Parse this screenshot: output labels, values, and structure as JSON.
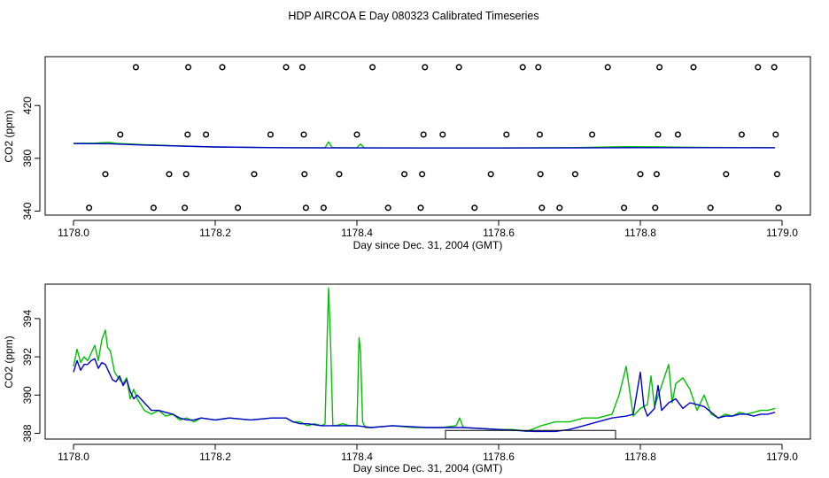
{
  "title": "HDP AIRCOA E  Day 080323  Calibrated Timeseries",
  "colors": {
    "series_green": "#00c000",
    "series_blue": "#0000cc",
    "axes": "#000000",
    "background": "#ffffff"
  },
  "chart_data": [
    {
      "type": "line",
      "xlabel": "Day since Dec. 31, 2004 (GMT)",
      "ylabel": "CO2 (ppm)",
      "xlim": [
        1177.96,
        1179.04
      ],
      "ylim": [
        337,
        457
      ],
      "x_ticks": [
        "1178.0",
        "1178.2",
        "1178.4",
        "1178.6",
        "1178.8",
        "1179.0"
      ],
      "y_ticks": [
        "340",
        "380",
        "420"
      ],
      "grid": false,
      "points_series": [
        {
          "x": 1178.022,
          "y": 342.5
        },
        {
          "x": 1178.045,
          "y": 368
        },
        {
          "x": 1178.066,
          "y": 398
        },
        {
          "x": 1178.088,
          "y": 449
        },
        {
          "x": 1178.113,
          "y": 342.5
        },
        {
          "x": 1178.135,
          "y": 368
        },
        {
          "x": 1178.157,
          "y": 342.5
        },
        {
          "x": 1178.159,
          "y": 368
        },
        {
          "x": 1178.161,
          "y": 398
        },
        {
          "x": 1178.162,
          "y": 449
        },
        {
          "x": 1178.187,
          "y": 398
        },
        {
          "x": 1178.21,
          "y": 449
        },
        {
          "x": 1178.232,
          "y": 342.5
        },
        {
          "x": 1178.255,
          "y": 368
        },
        {
          "x": 1178.278,
          "y": 398
        },
        {
          "x": 1178.3,
          "y": 449
        },
        {
          "x": 1178.323,
          "y": 449
        },
        {
          "x": 1178.325,
          "y": 398
        },
        {
          "x": 1178.326,
          "y": 368
        },
        {
          "x": 1178.328,
          "y": 342.5
        },
        {
          "x": 1178.353,
          "y": 342.5
        },
        {
          "x": 1178.375,
          "y": 368
        },
        {
          "x": 1178.4,
          "y": 398
        },
        {
          "x": 1178.422,
          "y": 449
        },
        {
          "x": 1178.444,
          "y": 342.5
        },
        {
          "x": 1178.467,
          "y": 368
        },
        {
          "x": 1178.49,
          "y": 342.5
        },
        {
          "x": 1178.492,
          "y": 368
        },
        {
          "x": 1178.494,
          "y": 398
        },
        {
          "x": 1178.496,
          "y": 449
        },
        {
          "x": 1178.521,
          "y": 398
        },
        {
          "x": 1178.544,
          "y": 449
        },
        {
          "x": 1178.566,
          "y": 342.5
        },
        {
          "x": 1178.589,
          "y": 368
        },
        {
          "x": 1178.611,
          "y": 398
        },
        {
          "x": 1178.634,
          "y": 449
        },
        {
          "x": 1178.656,
          "y": 449
        },
        {
          "x": 1178.658,
          "y": 398
        },
        {
          "x": 1178.659,
          "y": 368
        },
        {
          "x": 1178.661,
          "y": 342.5
        },
        {
          "x": 1178.686,
          "y": 342.5
        },
        {
          "x": 1178.708,
          "y": 368
        },
        {
          "x": 1178.732,
          "y": 398
        },
        {
          "x": 1178.754,
          "y": 449
        },
        {
          "x": 1178.777,
          "y": 342.5
        },
        {
          "x": 1178.8,
          "y": 368
        },
        {
          "x": 1178.821,
          "y": 342.5
        },
        {
          "x": 1178.823,
          "y": 368
        },
        {
          "x": 1178.825,
          "y": 398
        },
        {
          "x": 1178.827,
          "y": 449
        },
        {
          "x": 1178.853,
          "y": 398
        },
        {
          "x": 1178.875,
          "y": 449
        },
        {
          "x": 1178.899,
          "y": 342.5
        },
        {
          "x": 1178.921,
          "y": 368
        },
        {
          "x": 1178.943,
          "y": 398
        },
        {
          "x": 1178.966,
          "y": 449
        },
        {
          "x": 1178.989,
          "y": 449
        },
        {
          "x": 1178.991,
          "y": 398
        },
        {
          "x": 1178.993,
          "y": 368
        },
        {
          "x": 1178.995,
          "y": 342.5
        }
      ],
      "series": [
        {
          "color": "green",
          "x": [
            1178.0,
            1178.03,
            1178.05,
            1178.06,
            1178.1,
            1178.2,
            1178.3,
            1178.355,
            1178.36,
            1178.365,
            1178.4,
            1178.405,
            1178.41,
            1178.5,
            1178.6,
            1178.7,
            1178.78,
            1178.83,
            1178.85,
            1178.9,
            1178.99
          ],
          "values": [
            391.3,
            391.5,
            392.1,
            391.4,
            390.3,
            388.5,
            388.1,
            388.0,
            392.5,
            388.1,
            388.0,
            390.8,
            388.0,
            387.9,
            387.9,
            388.1,
            388.8,
            388.7,
            388.5,
            388.2,
            388.1
          ]
        },
        {
          "color": "blue",
          "x": [
            1178.0,
            1178.05,
            1178.1,
            1178.2,
            1178.3,
            1178.4,
            1178.5,
            1178.6,
            1178.7,
            1178.8,
            1178.9,
            1178.99
          ],
          "values": [
            391.2,
            391.0,
            390.0,
            388.6,
            388.0,
            387.9,
            387.8,
            387.8,
            387.9,
            388.1,
            388.1,
            388.0
          ]
        }
      ]
    },
    {
      "type": "line",
      "xlabel": "Day since Dec. 31, 2004 (GMT)",
      "ylabel": "CO2 (ppm)",
      "xlim": [
        1177.96,
        1179.04
      ],
      "ylim": [
        387.7,
        395.8
      ],
      "x_ticks": [
        "1178.0",
        "1178.2",
        "1178.4",
        "1178.6",
        "1178.8",
        "1179.0"
      ],
      "y_ticks": [
        "388",
        "390",
        "392",
        "394"
      ],
      "grid": false,
      "bracket": {
        "x_start": 1178.525,
        "x_end": 1178.765,
        "y_top": 388.15
      },
      "series": [
        {
          "color": "green",
          "x": [
            1178.0,
            1178.005,
            1178.01,
            1178.015,
            1178.02,
            1178.025,
            1178.03,
            1178.035,
            1178.04,
            1178.045,
            1178.048,
            1178.052,
            1178.058,
            1178.065,
            1178.07,
            1178.075,
            1178.08,
            1178.085,
            1178.09,
            1178.095,
            1178.1,
            1178.11,
            1178.12,
            1178.13,
            1178.14,
            1178.15,
            1178.16,
            1178.17,
            1178.18,
            1178.2,
            1178.22,
            1178.25,
            1178.28,
            1178.3,
            1178.31,
            1178.32,
            1178.33,
            1178.34,
            1178.35,
            1178.355,
            1178.358,
            1178.36,
            1178.363,
            1178.366,
            1178.37,
            1178.38,
            1178.39,
            1178.4,
            1178.403,
            1178.405,
            1178.408,
            1178.412,
            1178.42,
            1178.45,
            1178.48,
            1178.5,
            1178.52,
            1178.54,
            1178.545,
            1178.55,
            1178.6,
            1178.62,
            1178.64,
            1178.66,
            1178.68,
            1178.7,
            1178.72,
            1178.74,
            1178.76,
            1178.77,
            1178.78,
            1178.79,
            1178.8,
            1178.81,
            1178.815,
            1178.82,
            1178.83,
            1178.84,
            1178.845,
            1178.85,
            1178.86,
            1178.87,
            1178.88,
            1178.89,
            1178.9,
            1178.91,
            1178.92,
            1178.93,
            1178.94,
            1178.95,
            1178.96,
            1178.97,
            1178.98,
            1178.99
          ],
          "values": [
            391.5,
            392.4,
            391.7,
            392.0,
            391.8,
            392.2,
            392.6,
            391.8,
            392.9,
            393.4,
            392.5,
            392.3,
            391.2,
            390.8,
            390.6,
            390.9,
            389.8,
            390.3,
            389.8,
            389.5,
            389.2,
            389.0,
            389.2,
            388.9,
            389.0,
            388.7,
            388.8,
            388.6,
            388.8,
            388.7,
            388.8,
            388.7,
            388.8,
            388.8,
            388.6,
            388.6,
            388.4,
            388.5,
            388.4,
            388.5,
            393.0,
            395.6,
            392.5,
            388.4,
            388.4,
            388.5,
            388.4,
            388.4,
            393.0,
            392.3,
            388.6,
            388.3,
            388.3,
            388.4,
            388.3,
            388.3,
            388.3,
            388.4,
            388.8,
            388.3,
            388.2,
            388.2,
            388.1,
            388.4,
            388.6,
            388.6,
            388.8,
            388.8,
            389.0,
            390.0,
            391.5,
            388.9,
            389.3,
            389.5,
            391.0,
            389.4,
            390.5,
            391.6,
            389.6,
            390.6,
            390.9,
            390.3,
            389.2,
            390.0,
            389.0,
            388.8,
            389.0,
            388.9,
            389.1,
            389.0,
            389.1,
            389.2,
            389.2,
            389.3
          ]
        },
        {
          "color": "blue",
          "x": [
            1178.0,
            1178.005,
            1178.01,
            1178.015,
            1178.02,
            1178.025,
            1178.03,
            1178.035,
            1178.04,
            1178.045,
            1178.05,
            1178.055,
            1178.06,
            1178.065,
            1178.07,
            1178.075,
            1178.08,
            1178.085,
            1178.09,
            1178.1,
            1178.11,
            1178.12,
            1178.13,
            1178.14,
            1178.15,
            1178.16,
            1178.17,
            1178.18,
            1178.2,
            1178.22,
            1178.25,
            1178.28,
            1178.3,
            1178.31,
            1178.32,
            1178.33,
            1178.35,
            1178.38,
            1178.4,
            1178.42,
            1178.45,
            1178.5,
            1178.55,
            1178.6,
            1178.65,
            1178.68,
            1178.7,
            1178.72,
            1178.74,
            1178.76,
            1178.78,
            1178.79,
            1178.8,
            1178.805,
            1178.81,
            1178.82,
            1178.825,
            1178.83,
            1178.84,
            1178.85,
            1178.86,
            1178.87,
            1178.88,
            1178.89,
            1178.9,
            1178.91,
            1178.92,
            1178.93,
            1178.94,
            1178.95,
            1178.96,
            1178.97,
            1178.98,
            1178.99
          ],
          "values": [
            391.2,
            391.8,
            391.3,
            391.6,
            391.6,
            391.8,
            391.9,
            391.4,
            391.7,
            391.6,
            391.2,
            390.8,
            390.7,
            391.0,
            390.5,
            390.8,
            390.2,
            389.8,
            390.0,
            389.6,
            389.2,
            389.2,
            389.1,
            389.0,
            388.8,
            388.7,
            388.7,
            388.8,
            388.7,
            388.8,
            388.7,
            388.8,
            388.8,
            388.6,
            388.5,
            388.5,
            388.4,
            388.4,
            388.4,
            388.3,
            388.4,
            388.3,
            388.3,
            388.2,
            388.1,
            388.1,
            388.2,
            388.4,
            388.6,
            388.8,
            388.9,
            389.0,
            391.2,
            389.4,
            388.9,
            389.3,
            390.5,
            389.2,
            389.6,
            389.8,
            389.3,
            389.6,
            389.5,
            389.4,
            389.1,
            388.8,
            388.9,
            388.9,
            389.0,
            389.0,
            388.9,
            389.0,
            389.0,
            389.1
          ]
        }
      ]
    }
  ]
}
